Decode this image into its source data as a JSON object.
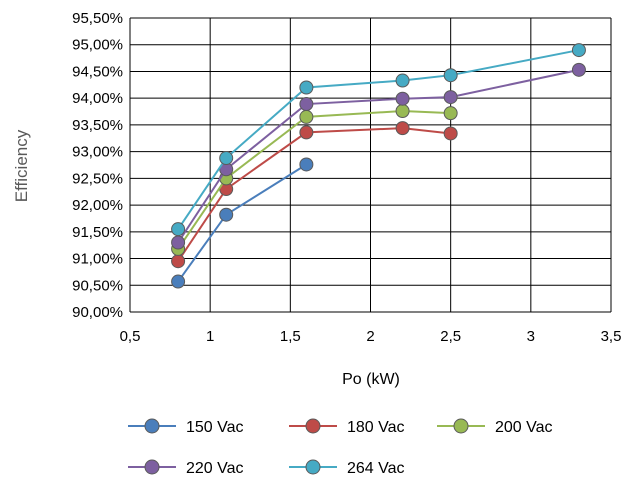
{
  "chart_data": {
    "type": "line",
    "xlabel": "Po (kW)",
    "ylabel": "Efficiency",
    "xlim": [
      0.5,
      3.5
    ],
    "ylim": [
      90.0,
      95.5
    ],
    "x_ticks": [
      "0,5",
      "1",
      "1,5",
      "2",
      "2,5",
      "3",
      "3,5"
    ],
    "y_ticks": [
      "90,00%",
      "90,50%",
      "91,00%",
      "91,50%",
      "92,00%",
      "92,50%",
      "93,00%",
      "93,50%",
      "94,00%",
      "94,50%",
      "95,00%",
      "95,50%"
    ],
    "grid": true,
    "legend_position": "bottom",
    "series": [
      {
        "name": "150 Vac",
        "color": "#4A7EBB",
        "x": [
          0.8,
          1.1,
          1.6
        ],
        "y": [
          90.57,
          91.82,
          92.76
        ]
      },
      {
        "name": "180 Vac",
        "color": "#BE4B48",
        "x": [
          0.8,
          1.1,
          1.6,
          2.2,
          2.5
        ],
        "y": [
          90.95,
          92.3,
          93.36,
          93.44,
          93.34
        ]
      },
      {
        "name": "200 Vac",
        "color": "#98B954",
        "x": [
          0.8,
          1.1,
          1.6,
          2.2,
          2.5
        ],
        "y": [
          91.18,
          92.5,
          93.65,
          93.76,
          93.72
        ]
      },
      {
        "name": "220 Vac",
        "color": "#7D60A0",
        "x": [
          0.8,
          1.1,
          1.6,
          2.2,
          2.5,
          3.3
        ],
        "y": [
          91.3,
          92.67,
          93.89,
          93.99,
          94.02,
          94.53
        ]
      },
      {
        "name": "264 Vac",
        "color": "#46AAC4",
        "x": [
          0.8,
          1.1,
          1.6,
          2.2,
          2.5,
          3.3
        ],
        "y": [
          91.55,
          92.88,
          94.2,
          94.33,
          94.43,
          94.9
        ]
      }
    ]
  }
}
